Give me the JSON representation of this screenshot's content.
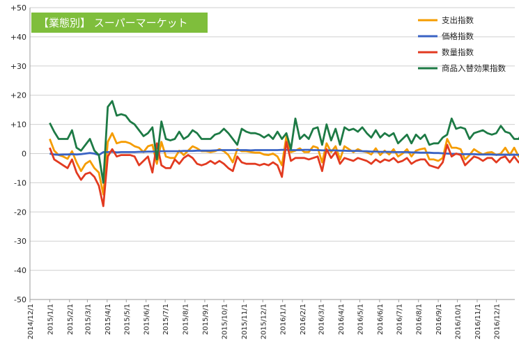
{
  "chart_data": {
    "type": "line",
    "title": "【業態別】 スーパーマーケット",
    "ylim": [
      -50,
      50
    ],
    "y_ticks": [
      -50,
      -40,
      -30,
      -20,
      -10,
      0,
      10,
      20,
      30,
      40,
      50
    ],
    "y_tick_labels": [
      "-50",
      "-40",
      "-30",
      "-20",
      "-10",
      "0",
      "+10",
      "+20",
      "+30",
      "+40",
      "+50"
    ],
    "x_tick_labels": [
      "2014/12/1",
      "2015/1/1",
      "2015/2/1",
      "2015/3/1",
      "2015/4/1",
      "2015/5/1",
      "2015/6/1",
      "2015/7/1",
      "2015/8/1",
      "2015/9/1",
      "2015/10/1",
      "2015/11/1",
      "2015/12/1",
      "2016/1/1",
      "2016/2/1",
      "2016/3/1",
      "2016/4/1",
      "2016/5/1",
      "2016/6/1",
      "2016/7/1",
      "2016/8/1",
      "2016/9/1",
      "2016/10/1",
      "2016/11/1",
      "2016/12/1"
    ],
    "x_tick_days": [
      0,
      31,
      62,
      90,
      121,
      151,
      182,
      212,
      243,
      274,
      304,
      335,
      365,
      396,
      427,
      456,
      487,
      517,
      548,
      578,
      609,
      640,
      670,
      701,
      731
    ],
    "x_first_date": "2014/12/1",
    "x_last_date": "2016/12/30",
    "x_step_days": 7,
    "grid": true,
    "legend_position": "top-right",
    "series": [
      {
        "name": "支出指数",
        "color": "#f59c00",
        "x_first_date": "2015/1/1",
        "values": [
          5,
          1,
          -0.5,
          -1,
          -1.8,
          0.8,
          -3,
          -6,
          -3.5,
          -2.5,
          -5,
          -6.5,
          -14,
          4,
          7,
          3.5,
          4,
          4,
          3.5,
          2.5,
          2,
          0.5,
          2.5,
          3,
          -3.5,
          4,
          -1,
          -1.5,
          -1.5,
          1,
          -0.5,
          1,
          2.5,
          1.8,
          0.8,
          0.8,
          0.5,
          0.8,
          1.5,
          0.8,
          -0.5,
          -3,
          1.5,
          0.8,
          0.8,
          0.5,
          0.3,
          0.3,
          -0.3,
          -0.5,
          0,
          -1,
          -4,
          6,
          0.5,
          1,
          1.8,
          0.5,
          0.5,
          2.5,
          2,
          -3,
          3.5,
          0.5,
          2.5,
          -2,
          2.5,
          1.5,
          0.5,
          1.5,
          0.8,
          0.5,
          -0.3,
          1.8,
          -0.5,
          1,
          -0.3,
          1.5,
          -1,
          0,
          1.5,
          -1,
          1,
          1.5,
          1.8,
          -2,
          -2,
          -2.5,
          -1.5,
          5,
          2,
          2,
          1.5,
          -2,
          -0.5,
          1.5,
          0.5,
          -0.3,
          0.3,
          0.5,
          -0.5,
          0,
          2,
          -0.5,
          2,
          -1,
          -1.5,
          2,
          -1.5,
          -2
        ]
      },
      {
        "name": "価格指数",
        "color": "#3a63c4",
        "x_first_date": "2015/1/1",
        "values": [
          0,
          -0.3,
          -0.4,
          -0.3,
          -0.3,
          -0.2,
          -0.3,
          -0.2,
          0,
          0.2,
          0,
          -0.5,
          0.5,
          0.5,
          0.6,
          0.4,
          0.5,
          0.5,
          0.5,
          0.5,
          0.6,
          0.6,
          0.7,
          0.7,
          0.7,
          0.8,
          0.8,
          0.8,
          0.8,
          0.8,
          0.9,
          0.9,
          0.9,
          1,
          1,
          1,
          1,
          1.1,
          1.2,
          1.2,
          1.2,
          1.2,
          1.2,
          1.2,
          1.2,
          1.1,
          1.2,
          1.2,
          1.2,
          1.2,
          1.2,
          1.2,
          1.3,
          1.3,
          1.2,
          1.2,
          1.2,
          1.3,
          1.3,
          1.2,
          1.2,
          1.1,
          1.1,
          1.1,
          1.1,
          1,
          1,
          0.9,
          0.9,
          0.9,
          0.8,
          0.8,
          0.7,
          0.7,
          0.6,
          0.6,
          0.6,
          0.5,
          0.5,
          0.5,
          0.5,
          0.4,
          0.4,
          0.3,
          0.3,
          0.3,
          0.2,
          0.2,
          0.1,
          0,
          -0.1,
          -0.1,
          -0.2,
          -0.2,
          -0.2,
          -0.2,
          -0.3,
          -0.3,
          -0.3,
          -0.3,
          -0.4,
          -0.4,
          -0.4,
          -0.4,
          -0.4,
          -0.4,
          -0.4,
          -0.5,
          -0.5,
          -0.5
        ]
      },
      {
        "name": "数量指数",
        "color": "#e23a20",
        "x_first_date": "2015/1/1",
        "values": [
          2,
          -2,
          -3,
          -4,
          -5,
          -2,
          -6.5,
          -9,
          -7,
          -6.5,
          -8,
          -11,
          -18,
          -1,
          1.5,
          -1,
          -0.5,
          -0.5,
          -0.5,
          -1,
          -4,
          -2.5,
          -1,
          -6.5,
          3.5,
          -4,
          -5,
          -5,
          -2,
          -3.5,
          -1.5,
          -0.5,
          -1.5,
          -3.5,
          -4,
          -3.5,
          -2.5,
          -3.5,
          -2.5,
          -3.5,
          -5,
          -6,
          -1,
          -3,
          -3.5,
          -3.5,
          -3.5,
          -4,
          -3.5,
          -4,
          -3,
          -4,
          -8,
          4,
          -2.5,
          -1.5,
          -1.5,
          -1.5,
          -2,
          -1.5,
          -1,
          -6,
          1.5,
          -1.5,
          0.5,
          -3.5,
          -1.5,
          -2,
          -2.5,
          -1.5,
          -2,
          -2.5,
          -3.5,
          -2,
          -3,
          -2,
          -2.5,
          -1.5,
          -3,
          -2.5,
          -1.5,
          -3.5,
          -2.5,
          -2,
          -2,
          -4,
          -4.5,
          -5,
          -3,
          3,
          -1,
          0,
          -0.5,
          -4,
          -2.5,
          -1,
          -1.5,
          -2.5,
          -1.5,
          -1.5,
          -3,
          -1.5,
          -1,
          -3,
          -1,
          -3,
          -2,
          0,
          -3,
          -3.5
        ]
      },
      {
        "name": "商品入替効果指数",
        "color": "#1d7a45",
        "x_first_date": "2015/1/1",
        "values": [
          10.5,
          7.5,
          5,
          5,
          5,
          8,
          2,
          1,
          3,
          5,
          1,
          -0.5,
          -10,
          16,
          18,
          13,
          13.5,
          13,
          11,
          10,
          8,
          6,
          7,
          9,
          -2,
          11,
          5,
          4.5,
          5,
          7.5,
          5,
          6,
          8,
          7,
          5,
          5,
          5,
          6.5,
          7,
          8.5,
          7,
          5,
          3,
          8.5,
          7.5,
          7,
          7,
          6.5,
          5.5,
          6.5,
          5,
          7.5,
          5,
          7,
          1.5,
          12,
          5,
          6.5,
          5,
          8.5,
          9,
          3,
          10,
          4.5,
          8.5,
          3,
          9,
          8,
          8.5,
          7.5,
          9,
          7,
          5.5,
          8,
          5.5,
          7,
          6,
          7,
          3.5,
          5,
          6.5,
          3.5,
          6.5,
          5,
          6.5,
          3,
          3.5,
          3.5,
          5.5,
          6.5,
          12,
          8.5,
          9,
          8.5,
          5,
          7,
          7.5,
          8,
          7,
          6.5,
          7,
          9.5,
          7.5,
          7,
          5,
          5,
          7.5,
          3.5,
          3.5
        ]
      }
    ]
  }
}
